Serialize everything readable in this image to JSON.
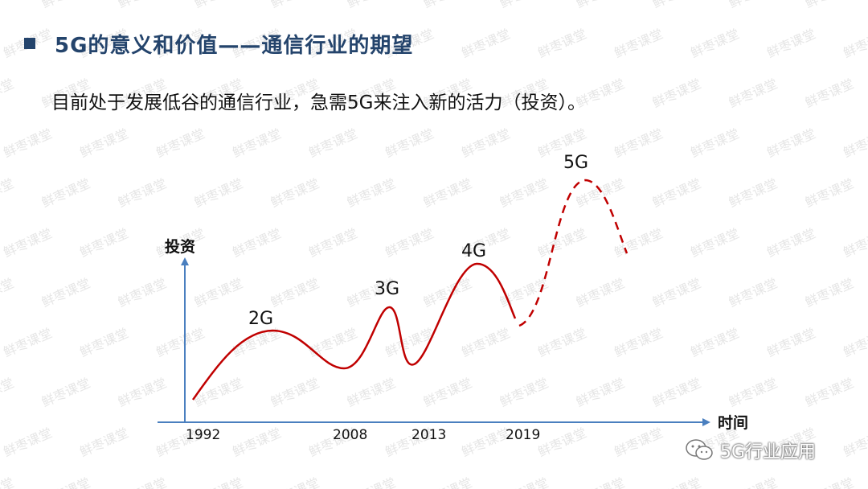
{
  "title": "5G的意义和价值——通信行业的期望",
  "subtitle": "目前处于发展低谷的通信行业，急需5G来注入新的活力（投资）。",
  "watermark": "鲜枣课堂",
  "axes": {
    "y_label": "投资",
    "x_label": "时间"
  },
  "generations": [
    "2G",
    "3G",
    "4G",
    "5G"
  ],
  "years": [
    "1992",
    "2008",
    "2013",
    "2019"
  ],
  "badge": {
    "text": "5G行业应用",
    "icon": "wechat-icon"
  },
  "colors": {
    "title": "#24446c",
    "curve": "#c00000",
    "axis": "#4a7fbf"
  }
}
